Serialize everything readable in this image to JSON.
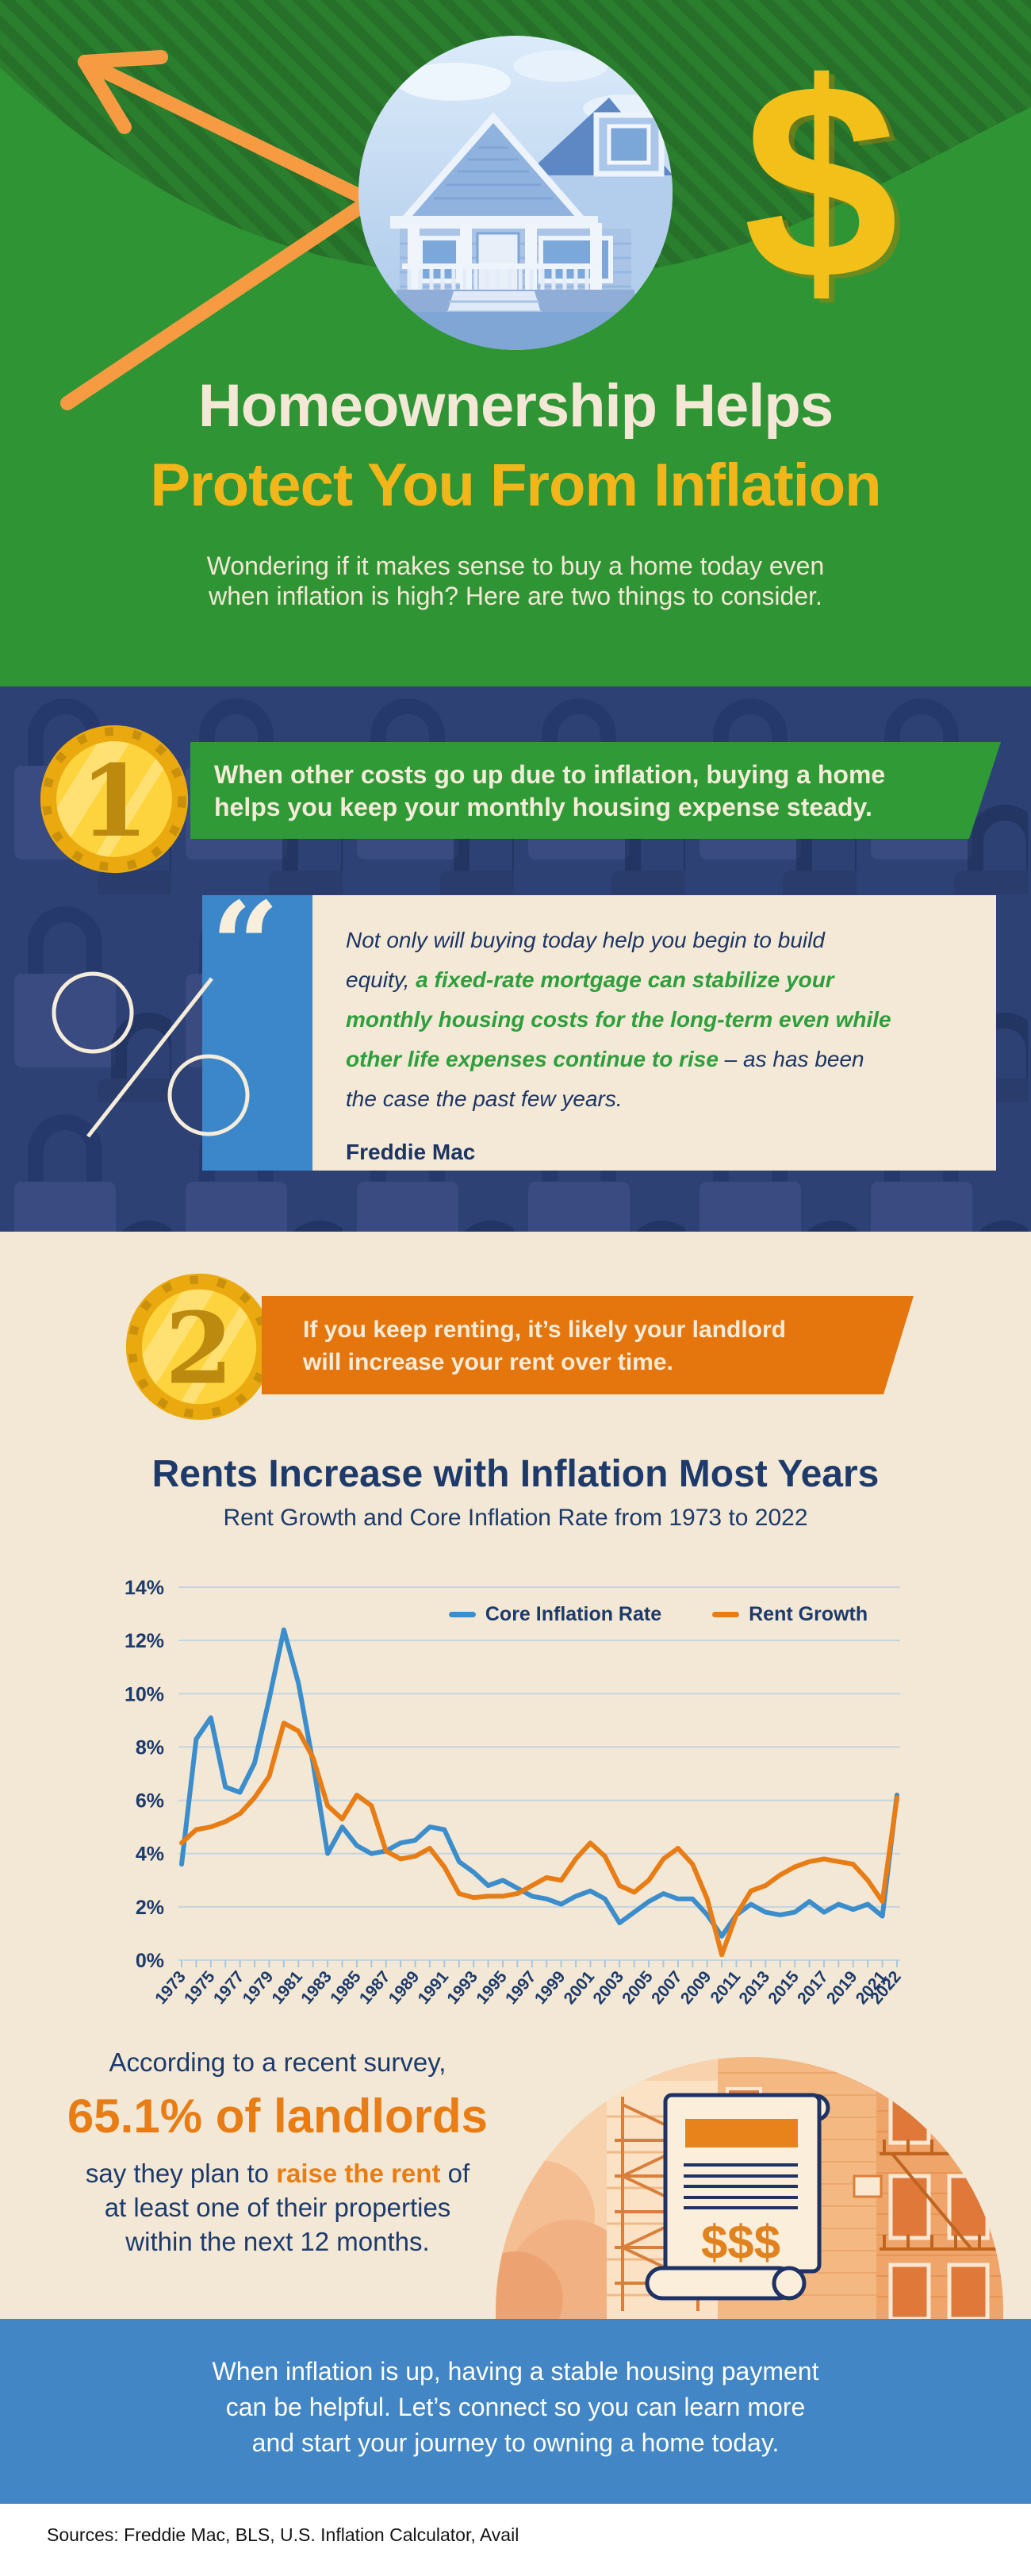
{
  "hero": {
    "title_line1": "Homeownership Helps",
    "title_line2": "Protect You From Inflation",
    "subtitle_line1": "Wondering if it makes sense to buy a home today even",
    "subtitle_line2": "when inflation is high? Here are two things to consider.",
    "dollar_symbol": "$"
  },
  "point1": {
    "badge_number": "1",
    "banner_line1": "When other costs go up due to inflation, buying a home",
    "banner_line2": "helps you keep your monthly housing expense steady.",
    "quote_mark": "“",
    "quote_part1": "Not only will buying today help you begin to build equity, ",
    "quote_highlight": "a fixed-rate mortgage can stabilize your monthly housing costs for the long-term even while other life expenses continue to rise",
    "quote_part2": " – as has been the case the past few years.",
    "quote_attribution": "Freddie Mac"
  },
  "point2": {
    "badge_number": "2",
    "banner_line1": "If you keep renting, it’s likely your landlord",
    "banner_line2": "will increase your rent over time."
  },
  "chart_section": {
    "heading": "Rents Increase with Inflation Most Years",
    "subheading": "Rent Growth and Core Inflation Rate from 1973 to 2022"
  },
  "chart_data": {
    "type": "line",
    "title": "Rents Increase with Inflation Most Years",
    "subtitle": "Rent Growth and Core Inflation Rate from 1973 to 2022",
    "ylim": [
      0,
      14
    ],
    "grid": true,
    "legend_position": "top",
    "y_ticks": [
      "0%",
      "2%",
      "4%",
      "6%",
      "8%",
      "10%",
      "12%",
      "14%"
    ],
    "x": [
      1973,
      1974,
      1975,
      1976,
      1977,
      1978,
      1979,
      1980,
      1981,
      1982,
      1983,
      1984,
      1985,
      1986,
      1987,
      1988,
      1989,
      1990,
      1991,
      1992,
      1993,
      1994,
      1995,
      1996,
      1997,
      1998,
      1999,
      2000,
      2001,
      2002,
      2003,
      2004,
      2005,
      2006,
      2007,
      2008,
      2009,
      2010,
      2011,
      2012,
      2013,
      2014,
      2015,
      2016,
      2017,
      2018,
      2019,
      2020,
      2021,
      2022
    ],
    "x_axis_labels": [
      "1973",
      "1975",
      "1977",
      "1979",
      "1981",
      "1983",
      "1985",
      "1987",
      "1989",
      "1991",
      "1993",
      "1995",
      "1997",
      "1999",
      "2001",
      "2003",
      "2005",
      "2007",
      "2009",
      "2011",
      "2013",
      "2015",
      "2017",
      "2019",
      "2021",
      "2022"
    ],
    "series": [
      {
        "name": "Core Inflation Rate",
        "color": "#3c8dcb",
        "values": [
          3.6,
          8.3,
          9.1,
          6.5,
          6.3,
          7.4,
          9.8,
          12.4,
          10.4,
          7.4,
          4.0,
          5.0,
          4.3,
          4.0,
          4.1,
          4.4,
          4.5,
          5.0,
          4.9,
          3.7,
          3.3,
          2.8,
          3.0,
          2.7,
          2.4,
          2.3,
          2.1,
          2.4,
          2.6,
          2.3,
          1.4,
          1.8,
          2.2,
          2.5,
          2.3,
          2.3,
          1.7,
          0.9,
          1.7,
          2.1,
          1.8,
          1.7,
          1.8,
          2.2,
          1.8,
          2.1,
          1.9,
          2.1,
          1.65,
          6.2
        ]
      },
      {
        "name": "Rent Growth",
        "color": "#e87c15",
        "values": [
          4.4,
          4.9,
          5.0,
          5.2,
          5.5,
          6.1,
          6.9,
          8.9,
          8.6,
          7.6,
          5.8,
          5.3,
          6.2,
          5.8,
          4.1,
          3.8,
          3.9,
          4.2,
          3.5,
          2.5,
          2.35,
          2.4,
          2.4,
          2.5,
          2.8,
          3.1,
          3.0,
          3.8,
          4.4,
          3.9,
          2.8,
          2.55,
          3.0,
          3.8,
          4.2,
          3.6,
          2.3,
          0.2,
          1.7,
          2.6,
          2.8,
          3.2,
          3.5,
          3.7,
          3.8,
          3.7,
          3.6,
          3.0,
          2.2,
          6.1
        ]
      }
    ]
  },
  "survey": {
    "intro": "According to a recent survey,",
    "stat": "65.1% of landlords",
    "detail_pre": "say they plan to ",
    "detail_highlight": "raise the rent",
    "detail_post": " of",
    "detail_line2": "at least one of their properties",
    "detail_line3": "within the next 12 months.",
    "bill_dollars": "$$$"
  },
  "footer": {
    "line1": "When inflation is up, having a stable housing payment",
    "line2": "can be helpful. Let’s connect so you can learn more",
    "line3": "and start your journey to owning a home today.",
    "sources": "Sources: Freddie Mac, BLS, U.S. Inflation Calculator, Avail"
  }
}
